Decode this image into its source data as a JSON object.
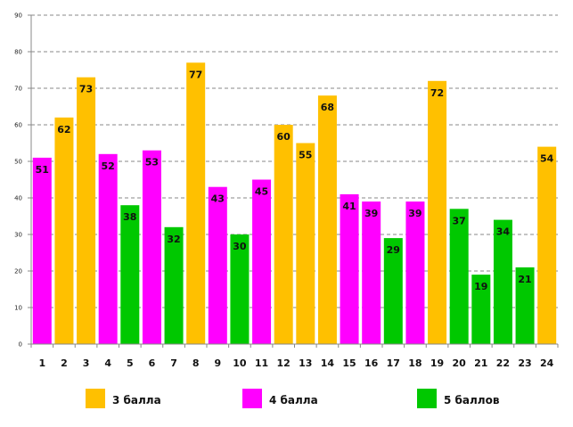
{
  "chart_data": {
    "type": "bar",
    "title": "",
    "xlabel": "",
    "ylabel": "",
    "ylim": [
      0,
      90
    ],
    "yticks": [
      0,
      10,
      20,
      30,
      40,
      50,
      60,
      70,
      80,
      90
    ],
    "grid": true,
    "legend_placement": "bottom",
    "categories": [
      "1",
      "2",
      "3",
      "4",
      "5",
      "6",
      "7",
      "8",
      "9",
      "10",
      "11",
      "12",
      "13",
      "14",
      "15",
      "16",
      "17",
      "18",
      "19",
      "20",
      "21",
      "22",
      "23",
      "24"
    ],
    "values": [
      51,
      62,
      73,
      52,
      38,
      53,
      32,
      77,
      43,
      30,
      45,
      60,
      55,
      68,
      41,
      39,
      29,
      39,
      72,
      37,
      19,
      34,
      21,
      54
    ],
    "groups": [
      "4",
      "3",
      "3",
      "4",
      "5",
      "4",
      "5",
      "3",
      "4",
      "5",
      "4",
      "3",
      "3",
      "3",
      "4",
      "4",
      "5",
      "4",
      "3",
      "5",
      "5",
      "5",
      "5",
      "3"
    ],
    "legend": [
      {
        "key": "3",
        "label": "3 балла",
        "color": "#FFC000"
      },
      {
        "key": "4",
        "label": "4 балла",
        "color": "#FF00FF"
      },
      {
        "key": "5",
        "label": "5 баллов",
        "color": "#00C800"
      }
    ]
  }
}
